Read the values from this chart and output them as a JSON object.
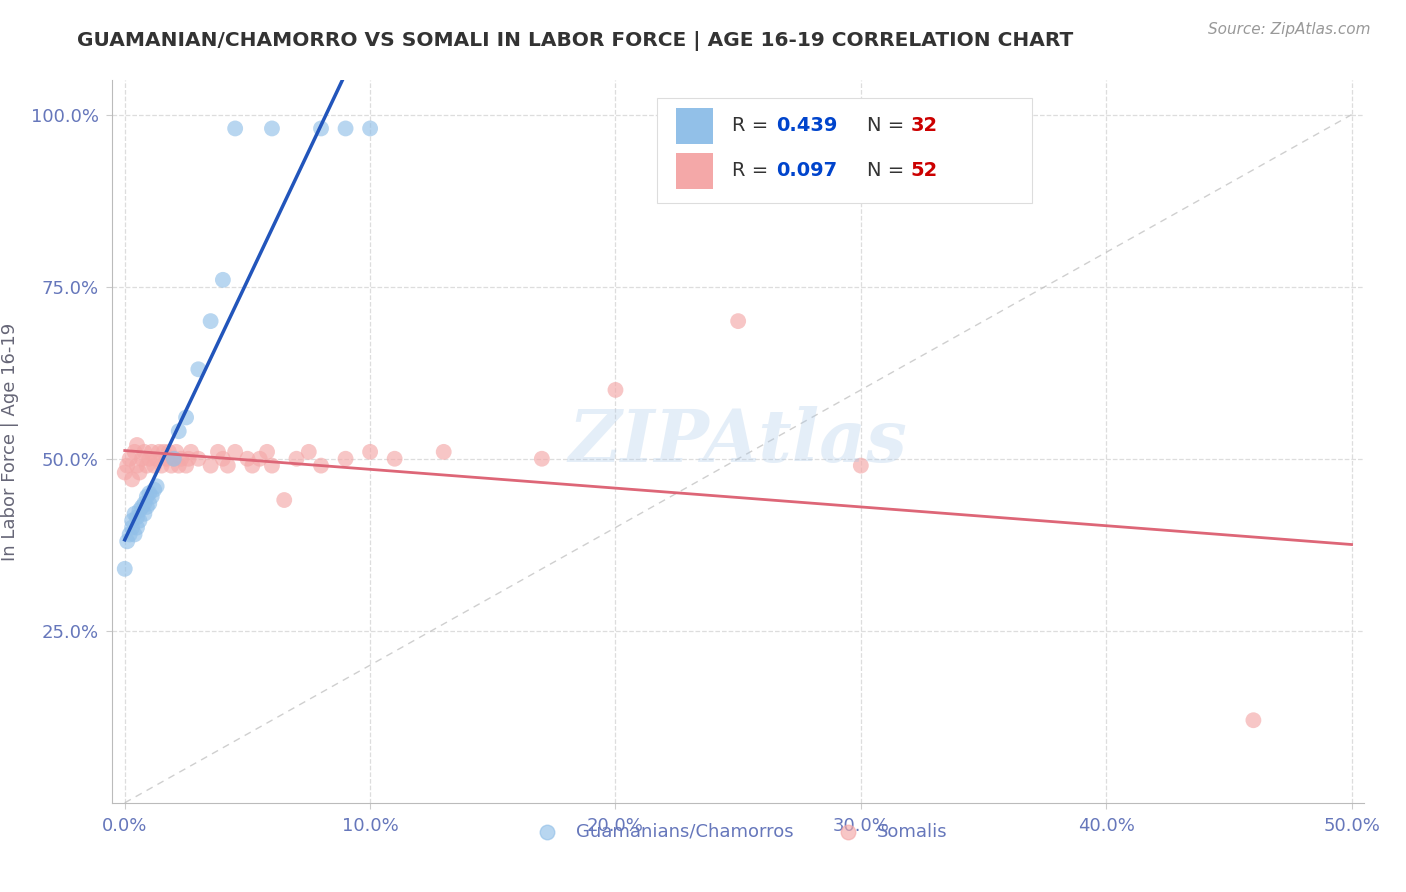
{
  "title": "GUAMANIAN/CHAMORRO VS SOMALI IN LABOR FORCE | AGE 16-19 CORRELATION CHART",
  "source": "Source: ZipAtlas.com",
  "ylabel": "In Labor Force | Age 16-19",
  "xlim": [
    -0.005,
    0.505
  ],
  "ylim": [
    0.0,
    1.05
  ],
  "xtick_vals": [
    0.0,
    0.1,
    0.2,
    0.3,
    0.4,
    0.5
  ],
  "ytick_vals": [
    0.25,
    0.5,
    0.75,
    1.0
  ],
  "xtick_labels": [
    "0.0%",
    "10.0%",
    "20.0%",
    "30.0%",
    "40.0%",
    "50.0%"
  ],
  "ytick_labels": [
    "25.0%",
    "50.0%",
    "75.0%",
    "100.0%"
  ],
  "legend_R1": "0.439",
  "legend_N1": "32",
  "legend_R2": "0.097",
  "legend_N2": "52",
  "watermark": "ZIPAtlas",
  "guamanian_color": "#92c0e8",
  "somali_color": "#f4a8a8",
  "guamanian_line_color": "#2255bb",
  "somali_line_color": "#dd6677",
  "diagonal_color": "#bbbbbb",
  "background_color": "#ffffff",
  "grid_color": "#dddddd",
  "title_color": "#333333",
  "axis_label_color": "#666677",
  "tick_color": "#6677bb",
  "legend_r_color": "#0044cc",
  "legend_n_color": "#cc0000",
  "guamanian_x": [
    0.0,
    0.001,
    0.002,
    0.003,
    0.003,
    0.004,
    0.004,
    0.005,
    0.005,
    0.006,
    0.006,
    0.007,
    0.008,
    0.008,
    0.009,
    0.009,
    0.01,
    0.01,
    0.011,
    0.012,
    0.013,
    0.02,
    0.022,
    0.025,
    0.03,
    0.035,
    0.04,
    0.045,
    0.06,
    0.08,
    0.09,
    0.1
  ],
  "guamanian_y": [
    0.34,
    0.38,
    0.39,
    0.4,
    0.41,
    0.39,
    0.42,
    0.4,
    0.415,
    0.41,
    0.425,
    0.43,
    0.42,
    0.435,
    0.43,
    0.445,
    0.435,
    0.45,
    0.445,
    0.455,
    0.46,
    0.5,
    0.54,
    0.56,
    0.63,
    0.7,
    0.76,
    0.98,
    0.98,
    0.98,
    0.98,
    0.98
  ],
  "somali_x": [
    0.0,
    0.001,
    0.002,
    0.003,
    0.004,
    0.005,
    0.005,
    0.006,
    0.007,
    0.008,
    0.009,
    0.01,
    0.011,
    0.012,
    0.013,
    0.014,
    0.015,
    0.016,
    0.017,
    0.018,
    0.019,
    0.02,
    0.021,
    0.022,
    0.023,
    0.025,
    0.026,
    0.027,
    0.03,
    0.035,
    0.038,
    0.04,
    0.042,
    0.045,
    0.05,
    0.052,
    0.055,
    0.058,
    0.06,
    0.065,
    0.07,
    0.075,
    0.08,
    0.09,
    0.1,
    0.11,
    0.13,
    0.17,
    0.2,
    0.25,
    0.3,
    0.46
  ],
  "somali_y": [
    0.48,
    0.49,
    0.5,
    0.47,
    0.51,
    0.49,
    0.52,
    0.48,
    0.5,
    0.51,
    0.49,
    0.5,
    0.51,
    0.49,
    0.5,
    0.51,
    0.49,
    0.51,
    0.5,
    0.51,
    0.49,
    0.5,
    0.51,
    0.49,
    0.5,
    0.49,
    0.5,
    0.51,
    0.5,
    0.49,
    0.51,
    0.5,
    0.49,
    0.51,
    0.5,
    0.49,
    0.5,
    0.51,
    0.49,
    0.44,
    0.5,
    0.51,
    0.49,
    0.5,
    0.51,
    0.5,
    0.51,
    0.5,
    0.6,
    0.7,
    0.49,
    0.12
  ]
}
